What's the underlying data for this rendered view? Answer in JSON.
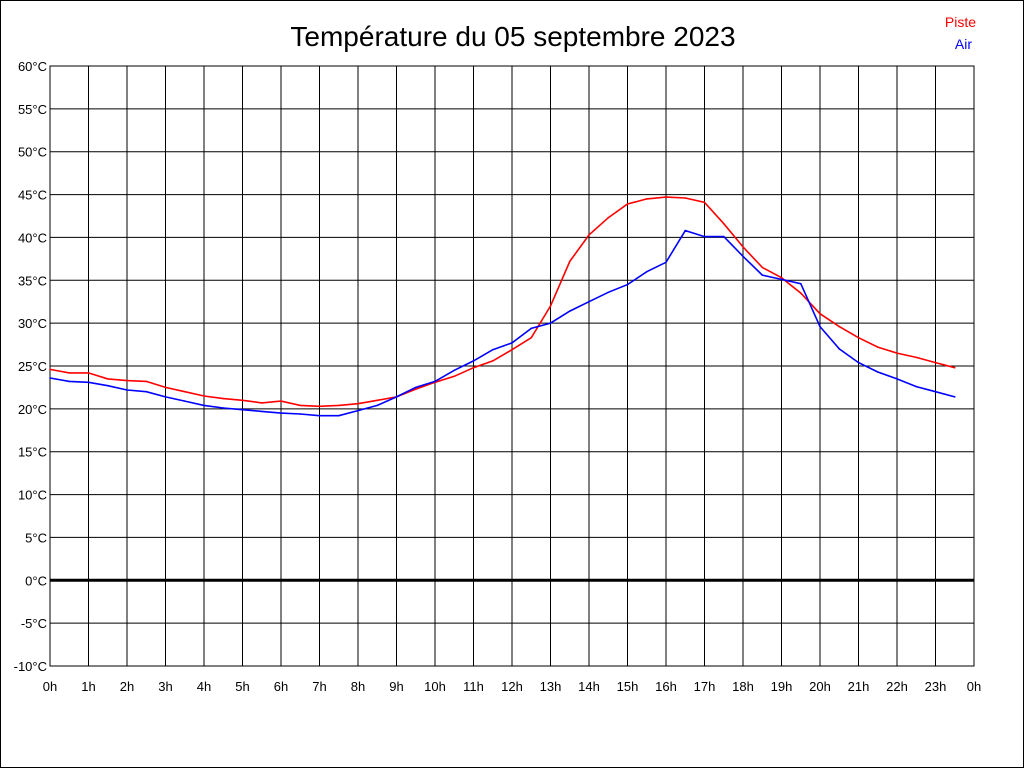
{
  "chart_data": {
    "type": "line",
    "title": "Température du 05 septembre 2023",
    "xlabel": "",
    "ylabel": "",
    "xlim": [
      0,
      24
    ],
    "ylim": [
      -10,
      60
    ],
    "grid": true,
    "legend_position": "top-right",
    "x_ticks": [
      "0h",
      "1h",
      "2h",
      "3h",
      "4h",
      "5h",
      "6h",
      "7h",
      "8h",
      "9h",
      "10h",
      "11h",
      "12h",
      "13h",
      "14h",
      "15h",
      "16h",
      "17h",
      "18h",
      "19h",
      "20h",
      "21h",
      "22h",
      "23h",
      "0h"
    ],
    "y_ticks": [
      "60°C",
      "55°C",
      "50°C",
      "45°C",
      "40°C",
      "35°C",
      "30°C",
      "25°C",
      "20°C",
      "15°C",
      "10°C",
      "5°C",
      "0°C",
      "-5°C",
      "-10°C"
    ],
    "y_tick_values": [
      60,
      55,
      50,
      45,
      40,
      35,
      30,
      25,
      20,
      15,
      10,
      5,
      0,
      -5,
      -10
    ],
    "x": [
      0,
      0.5,
      1,
      1.5,
      2,
      2.5,
      3,
      3.5,
      4,
      4.5,
      5,
      5.5,
      6,
      6.5,
      7,
      7.5,
      8,
      8.5,
      9,
      9.5,
      10,
      10.5,
      11,
      11.5,
      12,
      12.5,
      13,
      13.5,
      14,
      14.5,
      15,
      15.5,
      16,
      16.5,
      17,
      17.5,
      18,
      18.5,
      19,
      19.5,
      20,
      20.5,
      21,
      21.5,
      22,
      22.5,
      23,
      23.5
    ],
    "series": [
      {
        "name": "Piste",
        "color": "#ff0000",
        "values": [
          24.6,
          24.2,
          24.2,
          23.5,
          23.3,
          23.2,
          22.5,
          22.0,
          21.5,
          21.2,
          21.0,
          20.7,
          20.9,
          20.4,
          20.3,
          20.4,
          20.6,
          21.0,
          21.4,
          22.3,
          23.1,
          23.8,
          24.8,
          25.6,
          26.9,
          28.3,
          32.0,
          37.2,
          40.3,
          42.3,
          43.9,
          44.5,
          44.7,
          44.6,
          44.1,
          41.6,
          38.9,
          36.5,
          35.3,
          33.5,
          31.1,
          29.6,
          28.3,
          27.2,
          26.5,
          26.0,
          25.4,
          24.8
        ]
      },
      {
        "name": "Air",
        "color": "#0000ff",
        "values": [
          23.6,
          23.2,
          23.1,
          22.7,
          22.2,
          22.0,
          21.4,
          20.9,
          20.4,
          20.1,
          19.9,
          19.7,
          19.5,
          19.4,
          19.2,
          19.2,
          19.8,
          20.4,
          21.4,
          22.5,
          23.2,
          24.5,
          25.6,
          26.9,
          27.7,
          29.4,
          30.0,
          31.4,
          32.5,
          33.6,
          34.5,
          36.0,
          37.1,
          40.8,
          40.1,
          40.1,
          37.8,
          35.6,
          35.1,
          34.6,
          29.6,
          27.0,
          25.4,
          24.3,
          23.5,
          22.6,
          22.0,
          21.4
        ]
      }
    ]
  }
}
